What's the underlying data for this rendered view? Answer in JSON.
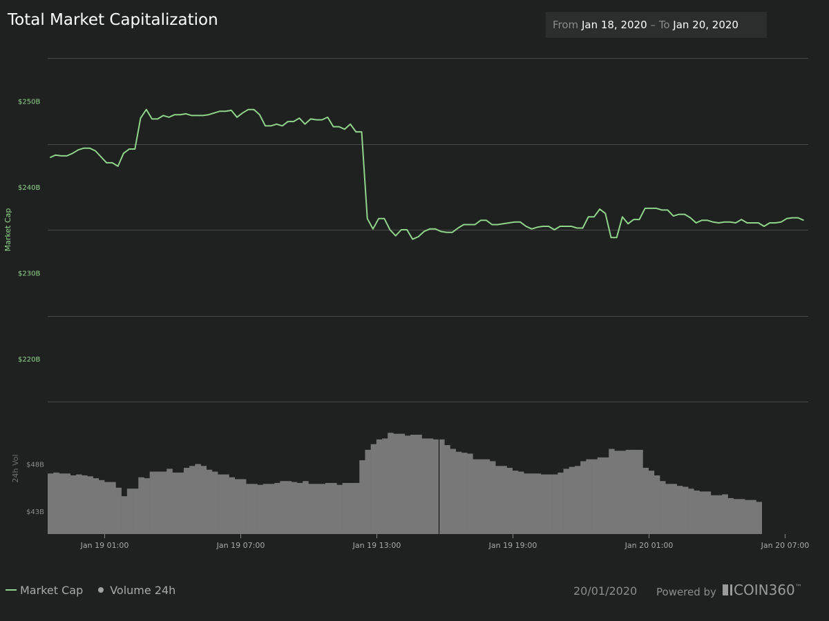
{
  "header": {
    "title": "Total Market Capitalization",
    "range": {
      "from_label": "From",
      "from_date": "Jan 18, 2020",
      "sep": "–",
      "to_label": "To",
      "to_date": "Jan 20, 2020"
    }
  },
  "legend": {
    "market_cap": "Market Cap",
    "volume": "Volume 24h"
  },
  "footer": {
    "date": "20/01/2020",
    "powered_by": "Powered by",
    "brand": "COIN360",
    "brand_tm": "™"
  },
  "colors": {
    "line": "#8fd68a",
    "bars": "#787878",
    "grid": "#4a4a4a",
    "background": "#1f2020"
  },
  "chart_data": {
    "type": "line",
    "ylabel": "Market Cap",
    "ylabel2": "24h Vol",
    "ylim": [
      215,
      255
    ],
    "yticks": [
      {
        "label": "$250B",
        "value": 250
      },
      {
        "label": "$240B",
        "value": 240
      },
      {
        "label": "$230B",
        "value": 230
      },
      {
        "label": "$220B",
        "value": 220
      }
    ],
    "grid_values": [
      225,
      235,
      245,
      255
    ],
    "vol_ylim": [
      40.6,
      54.6
    ],
    "vol_ticks": [
      {
        "label": "$48B",
        "value": 48
      },
      {
        "label": "$43B",
        "value": 43
      }
    ],
    "xlim": [
      -5,
      62.1
    ],
    "xticks": [
      {
        "label": "Jan 19 01:00",
        "hour": 0
      },
      {
        "label": "Jan 19 07:00",
        "hour": 12
      },
      {
        "label": "Jan 19 13:00",
        "hour": 24
      },
      {
        "label": "Jan 19 19:00",
        "hour": 36
      },
      {
        "label": "Jan 20 01:00",
        "hour": 48
      },
      {
        "label": "Jan 20 07:00",
        "hour": 60
      }
    ],
    "series": [
      {
        "name": "Market Cap",
        "x_start": -4.8,
        "x_step": 0.5,
        "values": [
          243.4,
          243.7,
          243.6,
          243.6,
          243.9,
          244.3,
          244.5,
          244.5,
          244.2,
          243.5,
          242.8,
          242.8,
          242.4,
          243.9,
          244.4,
          244.4,
          248,
          249,
          247.9,
          247.9,
          248.3,
          248.1,
          248.4,
          248.4,
          248.5,
          248.3,
          248.3,
          248.3,
          248.4,
          248.6,
          248.8,
          248.8,
          248.9,
          248.1,
          248.6,
          249,
          249,
          248.4,
          247.1,
          247.1,
          247.3,
          247.1,
          247.6,
          247.6,
          248,
          247.3,
          247.9,
          247.8,
          247.8,
          248.1,
          247,
          247,
          246.7,
          247.3,
          246.4,
          246.4,
          236.3,
          235.1,
          236.3,
          236.3,
          235,
          234.3,
          235,
          235,
          233.9,
          234.2,
          234.8,
          235.1,
          235.1,
          234.8,
          234.7,
          234.7,
          235.2,
          235.6,
          235.6,
          235.6,
          236.1,
          236.1,
          235.6,
          235.6,
          235.7,
          235.8,
          235.9,
          235.9,
          235.4,
          235.1,
          235.3,
          235.4,
          235.4,
          235,
          235.4,
          235.4,
          235.4,
          235.2,
          235.2,
          236.5,
          236.5,
          237.4,
          236.9,
          234.1,
          234.1,
          236.5,
          235.7,
          236.2,
          236.2,
          237.5,
          237.5,
          237.5,
          237.3,
          237.3,
          236.6,
          236.8,
          236.8,
          236.4,
          235.8,
          236.1,
          236.1,
          235.9,
          235.8,
          235.9,
          235.9,
          235.8,
          236.2,
          235.8,
          235.8,
          235.8,
          235.4,
          235.8,
          235.8,
          235.9,
          236.3,
          236.4,
          236.4,
          236.1
        ]
      },
      {
        "name": "Volume 24h",
        "unit": "B",
        "x_start": -5,
        "x_step": 0.5,
        "values": [
          47.0,
          47.1,
          47.0,
          47.0,
          46.8,
          46.9,
          46.8,
          46.7,
          46.5,
          46.3,
          46.1,
          46.1,
          45.5,
          44.6,
          45.4,
          45.4,
          46.6,
          46.5,
          47.2,
          47.2,
          47.2,
          47.5,
          47.1,
          47.1,
          47.6,
          47.8,
          48.0,
          47.8,
          47.4,
          47.2,
          46.9,
          46.9,
          46.6,
          46.4,
          46.4,
          45.9,
          45.9,
          45.8,
          45.9,
          45.9,
          46.0,
          46.2,
          46.2,
          46.1,
          46.0,
          46.2,
          45.9,
          45.9,
          45.9,
          46.0,
          46.0,
          45.8,
          46.0,
          46.0,
          46.0,
          48.4,
          49.5,
          50.1,
          50.6,
          50.7,
          51.3,
          51.2,
          51.2,
          51.0,
          51.1,
          51.1,
          50.7,
          50.7,
          50.6,
          50.6,
          50.0,
          49.6,
          49.3,
          49.2,
          49.1,
          48.5,
          48.5,
          48.5,
          48.3,
          47.8,
          47.8,
          47.6,
          47.3,
          47.2,
          47.0,
          47.0,
          47.0,
          46.9,
          46.9,
          46.9,
          47.1,
          47.5,
          47.7,
          47.8,
          48.3,
          48.5,
          48.5,
          48.7,
          48.7,
          49.6,
          49.4,
          49.4,
          49.5,
          49.5,
          49.5,
          47.6,
          47.3,
          46.8,
          46.2,
          45.9,
          45.9,
          45.7,
          45.6,
          45.4,
          45.2,
          45.1,
          45.1,
          44.7,
          44.7,
          44.8,
          44.4,
          44.3,
          44.3,
          44.2,
          44.2,
          44.0
        ]
      }
    ],
    "cursor_hour": 29.5
  }
}
